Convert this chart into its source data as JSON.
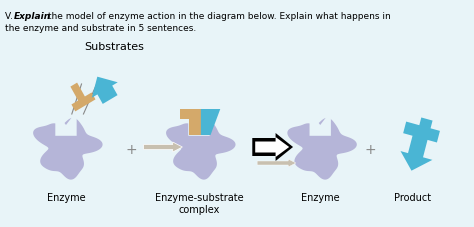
{
  "bg_color": "#e8f4f8",
  "enzyme_color": "#b5b5d8",
  "substrate1_color": "#d4a96a",
  "substrate2_color": "#4ab5d4",
  "product_color": "#4ab5d4",
  "label_enzyme1": "Enzyme",
  "label_complex": "Enzyme-substrate\ncomplex",
  "label_enzyme2": "Enzyme",
  "label_product": "Product",
  "label_substrates": "Substrates",
  "header1": "V. ",
  "header_bold": "Explain",
  "header2": " the model of enzyme action in the diagram below. Explain what happens in",
  "header3": "the enzyme and substrate in 5 sentences.",
  "arrow1_color": "#c8c0b0",
  "arrow2_big_color": "#000000",
  "arrow2_small_color": "#c8c0b0",
  "plus_color": "#888888"
}
